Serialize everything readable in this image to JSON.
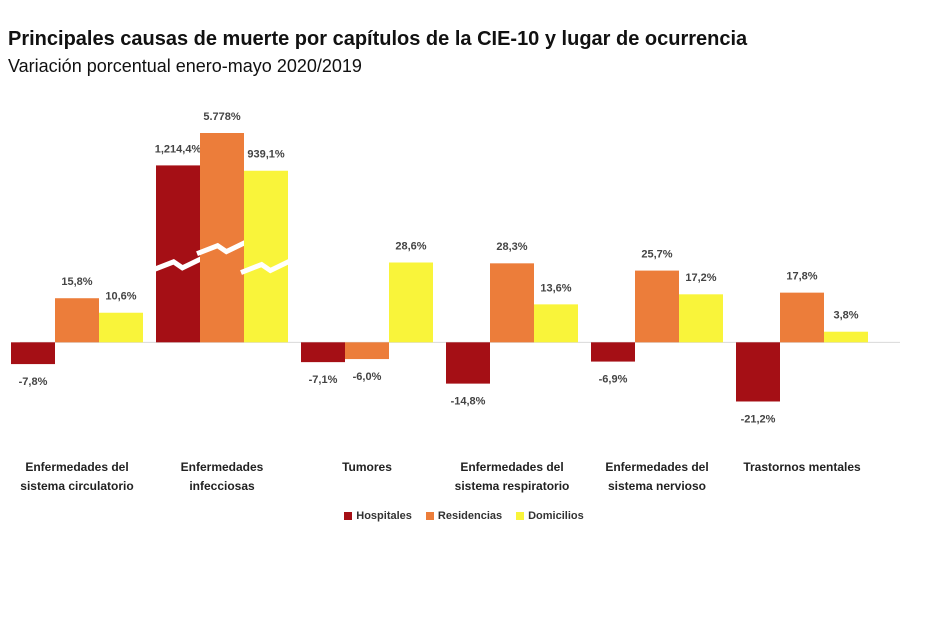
{
  "chart_data": {
    "type": "bar",
    "title": "Principales causas de muerte por capítulos de la CIE-10 y lugar de ocurrencia",
    "subtitle": "Variación porcentual enero-mayo 2020/2019",
    "categories": [
      "Enfermedades del sistema circulatorio",
      "Enfermedades infecciosas",
      "Tumores",
      "Enfermedades del sistema respiratorio",
      "Enfermedades del sistema nervioso",
      "Trastornos mentales"
    ],
    "series": [
      {
        "name": "Hospitales",
        "color": "#a50f15",
        "values": [
          -7.8,
          1214.4,
          -7.1,
          -14.8,
          -6.9,
          -21.2
        ],
        "value_labels": [
          "-7,8%",
          "1,214,4%",
          "-7,1%",
          "-14,8%",
          "-6,9%",
          "-21,2%"
        ]
      },
      {
        "name": "Residencias",
        "color": "#ec7d3a",
        "values": [
          15.8,
          5778,
          -6.0,
          28.3,
          25.7,
          17.8
        ],
        "value_labels": [
          "15,8%",
          "5.778%",
          "-6,0%",
          "28,3%",
          "25,7%",
          "17,8%"
        ]
      },
      {
        "name": "Domicilios",
        "color": "#f9f43a",
        "values": [
          10.6,
          939.1,
          28.6,
          13.6,
          17.2,
          3.8
        ],
        "value_labels": [
          "10,6%",
          "939,1%",
          "28,6%",
          "13,6%",
          "17,2%",
          "3,8%"
        ]
      }
    ],
    "ylim": [
      -35,
      75
    ],
    "broken_axis": true,
    "legend": "bottom"
  }
}
